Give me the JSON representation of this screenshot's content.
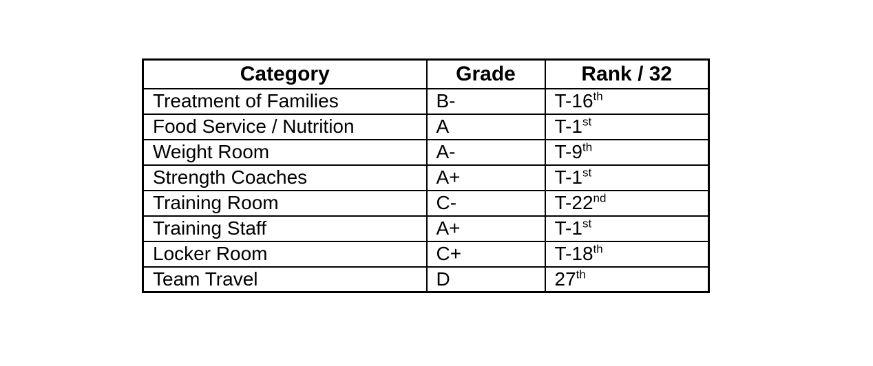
{
  "colors": {
    "background": "#ffffff",
    "border": "#000000",
    "text": "#000000"
  },
  "table": {
    "headers": {
      "category": "Category",
      "grade": "Grade",
      "rank": "Rank / 32"
    },
    "rows": [
      {
        "category": "Treatment of Families",
        "grade": "B-",
        "rank_base": "T-16",
        "rank_sup": "th"
      },
      {
        "category": "Food Service / Nutrition",
        "grade": "A",
        "rank_base": "T-1",
        "rank_sup": "st"
      },
      {
        "category": "Weight Room",
        "grade": "A-",
        "rank_base": "T-9",
        "rank_sup": "th"
      },
      {
        "category": "Strength Coaches",
        "grade": "A+",
        "rank_base": "T-1",
        "rank_sup": "st"
      },
      {
        "category": "Training Room",
        "grade": "C-",
        "rank_base": "T-22",
        "rank_sup": "nd"
      },
      {
        "category": "Training Staff",
        "grade": "A+",
        "rank_base": "T-1",
        "rank_sup": "st"
      },
      {
        "category": "Locker Room",
        "grade": "C+",
        "rank_base": "T-18",
        "rank_sup": "th"
      },
      {
        "category": "Team Travel",
        "grade": "D",
        "rank_base": "27",
        "rank_sup": "th"
      }
    ]
  }
}
